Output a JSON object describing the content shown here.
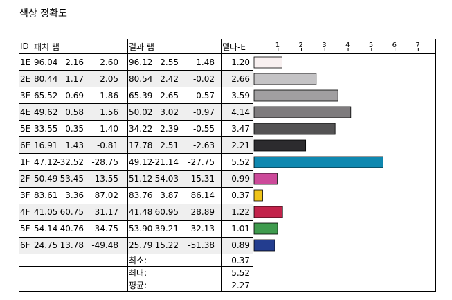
{
  "title": "색상 정확도",
  "headers": {
    "id": "ID",
    "patch": "패치 랩",
    "result": "결과 랩",
    "delta": "델타-E"
  },
  "chart_data": {
    "type": "bar",
    "orientation": "horizontal",
    "xlim": [
      0,
      7.7
    ],
    "ticks": [
      "1",
      "2",
      "3",
      "4",
      "5",
      "6",
      "7"
    ],
    "categories": [
      "1E",
      "2E",
      "3E",
      "4E",
      "5E",
      "6E",
      "1F",
      "2F",
      "3F",
      "4F",
      "5F",
      "6F"
    ],
    "values": [
      1.2,
      2.66,
      3.59,
      4.14,
      3.47,
      2.21,
      5.52,
      0.99,
      0.37,
      1.22,
      1.01,
      0.89
    ],
    "colors": [
      "#f8f0f0",
      "#c4c3c5",
      "#a19fa1",
      "#7e7b7d",
      "#545354",
      "#2c2b2e",
      "#0f88b0",
      "#cc4a9a",
      "#f0c419",
      "#c2224a",
      "#3f9b4e",
      "#233d8f"
    ],
    "grid": false
  },
  "rows": [
    {
      "id": "1E",
      "patch": [
        "96.04",
        "2.16",
        "2.60"
      ],
      "result": [
        "96.12",
        "2.55",
        "1.48"
      ],
      "delta": "1.20"
    },
    {
      "id": "2E",
      "patch": [
        "80.44",
        "1.17",
        "2.05"
      ],
      "result": [
        "80.54",
        "2.42",
        "-0.02"
      ],
      "delta": "2.66"
    },
    {
      "id": "3E",
      "patch": [
        "65.52",
        "0.69",
        "1.86"
      ],
      "result": [
        "65.39",
        "2.65",
        "-0.57"
      ],
      "delta": "3.59"
    },
    {
      "id": "4E",
      "patch": [
        "49.62",
        "0.58",
        "1.56"
      ],
      "result": [
        "50.02",
        "3.02",
        "-0.97"
      ],
      "delta": "4.14"
    },
    {
      "id": "5E",
      "patch": [
        "33.55",
        "0.35",
        "1.40"
      ],
      "result": [
        "34.22",
        "2.39",
        "-0.55"
      ],
      "delta": "3.47"
    },
    {
      "id": "6E",
      "patch": [
        "16.91",
        "1.43",
        "-0.81"
      ],
      "result": [
        "17.78",
        "2.51",
        "-2.63"
      ],
      "delta": "2.21"
    },
    {
      "id": "1F",
      "patch": [
        "47.12",
        "-32.52",
        "-28.75"
      ],
      "result": [
        "49.12",
        "-21.14",
        "-27.75"
      ],
      "delta": "5.52"
    },
    {
      "id": "2F",
      "patch": [
        "50.49",
        "53.45",
        "-13.55"
      ],
      "result": [
        "51.12",
        "54.03",
        "-15.31"
      ],
      "delta": "0.99"
    },
    {
      "id": "3F",
      "patch": [
        "83.61",
        "3.36",
        "87.02"
      ],
      "result": [
        "83.76",
        "3.87",
        "86.14"
      ],
      "delta": "0.37"
    },
    {
      "id": "4F",
      "patch": [
        "41.05",
        "60.75",
        "31.17"
      ],
      "result": [
        "41.48",
        "60.95",
        "28.89"
      ],
      "delta": "1.22"
    },
    {
      "id": "5F",
      "patch": [
        "54.14",
        "-40.76",
        "34.75"
      ],
      "result": [
        "53.90",
        "-39.21",
        "32.13"
      ],
      "delta": "1.01"
    },
    {
      "id": "6F",
      "patch": [
        "24.75",
        "13.78",
        "-49.48"
      ],
      "result": [
        "25.79",
        "15.22",
        "-51.38"
      ],
      "delta": "0.89"
    }
  ],
  "summary": [
    {
      "label": "최소:",
      "value": "0.37"
    },
    {
      "label": "최대:",
      "value": "5.52"
    },
    {
      "label": "평균:",
      "value": "2.27"
    }
  ]
}
